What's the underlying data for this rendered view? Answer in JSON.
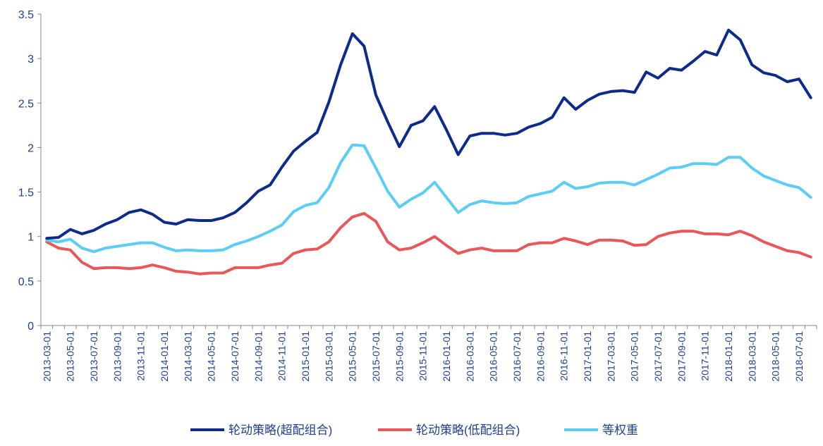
{
  "chart_data": {
    "type": "line",
    "title": "",
    "xlabel": "",
    "ylabel": "",
    "ylim": [
      0,
      3.5
    ],
    "yticks": [
      "0",
      "0.5",
      "1",
      "1.5",
      "2",
      "2.5",
      "3",
      "3.5"
    ],
    "grid": false,
    "legend_position": "bottom",
    "x": [
      "2013-03",
      "2013-04",
      "2013-05",
      "2013-06",
      "2013-07",
      "2013-08",
      "2013-09",
      "2013-10",
      "2013-11",
      "2013-12",
      "2014-01",
      "2014-02",
      "2014-03",
      "2014-04",
      "2014-05",
      "2014-06",
      "2014-07",
      "2014-08",
      "2014-09",
      "2014-10",
      "2014-11",
      "2014-12",
      "2015-01",
      "2015-02",
      "2015-03",
      "2015-04",
      "2015-05",
      "2015-06",
      "2015-07",
      "2015-08",
      "2015-09",
      "2015-10",
      "2015-11",
      "2015-12",
      "2016-01",
      "2016-02",
      "2016-03",
      "2016-04",
      "2016-05",
      "2016-06",
      "2016-07",
      "2016-08",
      "2016-09",
      "2016-10",
      "2016-11",
      "2016-12",
      "2017-01",
      "2017-02",
      "2017-03",
      "2017-04",
      "2017-05",
      "2017-06",
      "2017-07",
      "2017-08",
      "2017-09",
      "2017-10",
      "2017-11",
      "2017-12",
      "2018-01",
      "2018-02",
      "2018-03",
      "2018-04",
      "2018-05",
      "2018-06",
      "2018-07",
      "2018-08"
    ],
    "x_tick_labels": [
      "2013-03-01",
      "2013-05-01",
      "2013-07-01",
      "2013-09-01",
      "2013-11-01",
      "2014-01-01",
      "2014-03-01",
      "2014-05-01",
      "2014-07-01",
      "2014-09-01",
      "2014-11-01",
      "2015-01-01",
      "2015-03-01",
      "2015-05-01",
      "2015-07-01",
      "2015-09-01",
      "2015-11-01",
      "2016-01-01",
      "2016-03-01",
      "2016-05-01",
      "2016-07-01",
      "2016-09-01",
      "2016-11-01",
      "2017-01-01",
      "2017-03-01",
      "2017-05-01",
      "2017-07-01",
      "2017-09-01",
      "2017-11-01",
      "2018-01-01",
      "2018-03-01",
      "2018-05-01",
      "2018-07-01"
    ],
    "series": [
      {
        "name": "轮动策略(超配组合)",
        "color": "#0d2b8a",
        "values": [
          0.98,
          0.99,
          1.08,
          1.03,
          1.07,
          1.14,
          1.19,
          1.27,
          1.3,
          1.25,
          1.16,
          1.14,
          1.19,
          1.18,
          1.18,
          1.21,
          1.27,
          1.38,
          1.51,
          1.58,
          1.78,
          1.96,
          2.07,
          2.17,
          2.51,
          2.93,
          3.28,
          3.14,
          2.59,
          2.29,
          2.01,
          2.25,
          2.3,
          2.46,
          2.2,
          1.92,
          2.13,
          2.16,
          2.16,
          2.14,
          2.16,
          2.23,
          2.27,
          2.34,
          2.56,
          2.43,
          2.53,
          2.6,
          2.63,
          2.64,
          2.62,
          2.85,
          2.78,
          2.89,
          2.87,
          2.97,
          3.08,
          3.04,
          3.32,
          3.21,
          2.93,
          2.84,
          2.81,
          2.74,
          2.77,
          2.56
        ]
      },
      {
        "name": "轮动策略(低配组合)",
        "color": "#e85858",
        "values": [
          0.94,
          0.87,
          0.85,
          0.71,
          0.64,
          0.65,
          0.65,
          0.64,
          0.65,
          0.68,
          0.65,
          0.61,
          0.6,
          0.58,
          0.59,
          0.59,
          0.65,
          0.65,
          0.65,
          0.68,
          0.7,
          0.81,
          0.85,
          0.86,
          0.94,
          1.1,
          1.22,
          1.26,
          1.17,
          0.94,
          0.85,
          0.87,
          0.93,
          1.0,
          0.9,
          0.81,
          0.85,
          0.87,
          0.84,
          0.84,
          0.84,
          0.91,
          0.93,
          0.93,
          0.98,
          0.95,
          0.91,
          0.96,
          0.96,
          0.95,
          0.9,
          0.91,
          1.0,
          1.04,
          1.06,
          1.06,
          1.03,
          1.03,
          1.02,
          1.06,
          1.01,
          0.94,
          0.89,
          0.84,
          0.82,
          0.77
        ]
      },
      {
        "name": "等权重",
        "color": "#5ccdf4",
        "values": [
          0.96,
          0.94,
          0.97,
          0.87,
          0.83,
          0.87,
          0.89,
          0.91,
          0.93,
          0.93,
          0.88,
          0.84,
          0.85,
          0.84,
          0.84,
          0.85,
          0.91,
          0.95,
          1.0,
          1.06,
          1.13,
          1.28,
          1.35,
          1.38,
          1.55,
          1.83,
          2.03,
          2.02,
          1.77,
          1.51,
          1.33,
          1.42,
          1.49,
          1.61,
          1.44,
          1.27,
          1.36,
          1.4,
          1.38,
          1.37,
          1.38,
          1.45,
          1.48,
          1.51,
          1.61,
          1.54,
          1.56,
          1.6,
          1.61,
          1.61,
          1.58,
          1.64,
          1.7,
          1.77,
          1.78,
          1.82,
          1.82,
          1.81,
          1.89,
          1.89,
          1.77,
          1.68,
          1.63,
          1.58,
          1.55,
          1.44
        ]
      }
    ]
  }
}
